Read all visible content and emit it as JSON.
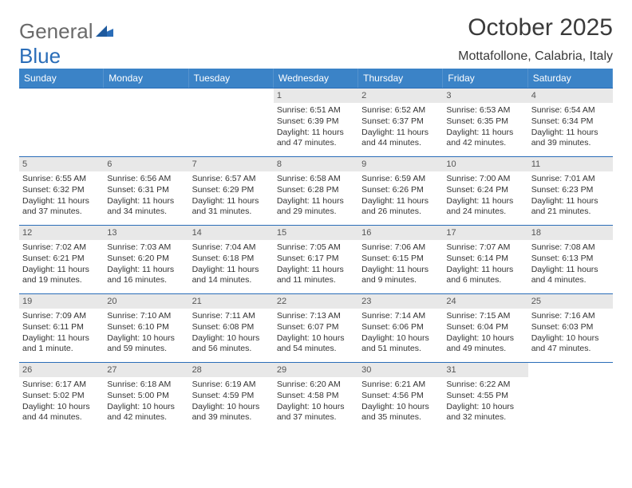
{
  "logo": {
    "text_a": "General",
    "text_b": "Blue"
  },
  "title": "October 2025",
  "location": "Mottafollone, Calabria, Italy",
  "day_headers": [
    "Sunday",
    "Monday",
    "Tuesday",
    "Wednesday",
    "Thursday",
    "Friday",
    "Saturday"
  ],
  "colors": {
    "header_bg": "#3b83c7",
    "header_text": "#ffffff",
    "rule": "#2a6db8",
    "daynum_bg": "#e8e8e8",
    "text": "#333333",
    "logo_gray": "#6a6a6a"
  },
  "weeks": [
    [
      {
        "n": "",
        "sr": "",
        "ss": "",
        "dl": ""
      },
      {
        "n": "",
        "sr": "",
        "ss": "",
        "dl": ""
      },
      {
        "n": "",
        "sr": "",
        "ss": "",
        "dl": ""
      },
      {
        "n": "1",
        "sr": "Sunrise: 6:51 AM",
        "ss": "Sunset: 6:39 PM",
        "dl": "Daylight: 11 hours and 47 minutes."
      },
      {
        "n": "2",
        "sr": "Sunrise: 6:52 AM",
        "ss": "Sunset: 6:37 PM",
        "dl": "Daylight: 11 hours and 44 minutes."
      },
      {
        "n": "3",
        "sr": "Sunrise: 6:53 AM",
        "ss": "Sunset: 6:35 PM",
        "dl": "Daylight: 11 hours and 42 minutes."
      },
      {
        "n": "4",
        "sr": "Sunrise: 6:54 AM",
        "ss": "Sunset: 6:34 PM",
        "dl": "Daylight: 11 hours and 39 minutes."
      }
    ],
    [
      {
        "n": "5",
        "sr": "Sunrise: 6:55 AM",
        "ss": "Sunset: 6:32 PM",
        "dl": "Daylight: 11 hours and 37 minutes."
      },
      {
        "n": "6",
        "sr": "Sunrise: 6:56 AM",
        "ss": "Sunset: 6:31 PM",
        "dl": "Daylight: 11 hours and 34 minutes."
      },
      {
        "n": "7",
        "sr": "Sunrise: 6:57 AM",
        "ss": "Sunset: 6:29 PM",
        "dl": "Daylight: 11 hours and 31 minutes."
      },
      {
        "n": "8",
        "sr": "Sunrise: 6:58 AM",
        "ss": "Sunset: 6:28 PM",
        "dl": "Daylight: 11 hours and 29 minutes."
      },
      {
        "n": "9",
        "sr": "Sunrise: 6:59 AM",
        "ss": "Sunset: 6:26 PM",
        "dl": "Daylight: 11 hours and 26 minutes."
      },
      {
        "n": "10",
        "sr": "Sunrise: 7:00 AM",
        "ss": "Sunset: 6:24 PM",
        "dl": "Daylight: 11 hours and 24 minutes."
      },
      {
        "n": "11",
        "sr": "Sunrise: 7:01 AM",
        "ss": "Sunset: 6:23 PM",
        "dl": "Daylight: 11 hours and 21 minutes."
      }
    ],
    [
      {
        "n": "12",
        "sr": "Sunrise: 7:02 AM",
        "ss": "Sunset: 6:21 PM",
        "dl": "Daylight: 11 hours and 19 minutes."
      },
      {
        "n": "13",
        "sr": "Sunrise: 7:03 AM",
        "ss": "Sunset: 6:20 PM",
        "dl": "Daylight: 11 hours and 16 minutes."
      },
      {
        "n": "14",
        "sr": "Sunrise: 7:04 AM",
        "ss": "Sunset: 6:18 PM",
        "dl": "Daylight: 11 hours and 14 minutes."
      },
      {
        "n": "15",
        "sr": "Sunrise: 7:05 AM",
        "ss": "Sunset: 6:17 PM",
        "dl": "Daylight: 11 hours and 11 minutes."
      },
      {
        "n": "16",
        "sr": "Sunrise: 7:06 AM",
        "ss": "Sunset: 6:15 PM",
        "dl": "Daylight: 11 hours and 9 minutes."
      },
      {
        "n": "17",
        "sr": "Sunrise: 7:07 AM",
        "ss": "Sunset: 6:14 PM",
        "dl": "Daylight: 11 hours and 6 minutes."
      },
      {
        "n": "18",
        "sr": "Sunrise: 7:08 AM",
        "ss": "Sunset: 6:13 PM",
        "dl": "Daylight: 11 hours and 4 minutes."
      }
    ],
    [
      {
        "n": "19",
        "sr": "Sunrise: 7:09 AM",
        "ss": "Sunset: 6:11 PM",
        "dl": "Daylight: 11 hours and 1 minute."
      },
      {
        "n": "20",
        "sr": "Sunrise: 7:10 AM",
        "ss": "Sunset: 6:10 PM",
        "dl": "Daylight: 10 hours and 59 minutes."
      },
      {
        "n": "21",
        "sr": "Sunrise: 7:11 AM",
        "ss": "Sunset: 6:08 PM",
        "dl": "Daylight: 10 hours and 56 minutes."
      },
      {
        "n": "22",
        "sr": "Sunrise: 7:13 AM",
        "ss": "Sunset: 6:07 PM",
        "dl": "Daylight: 10 hours and 54 minutes."
      },
      {
        "n": "23",
        "sr": "Sunrise: 7:14 AM",
        "ss": "Sunset: 6:06 PM",
        "dl": "Daylight: 10 hours and 51 minutes."
      },
      {
        "n": "24",
        "sr": "Sunrise: 7:15 AM",
        "ss": "Sunset: 6:04 PM",
        "dl": "Daylight: 10 hours and 49 minutes."
      },
      {
        "n": "25",
        "sr": "Sunrise: 7:16 AM",
        "ss": "Sunset: 6:03 PM",
        "dl": "Daylight: 10 hours and 47 minutes."
      }
    ],
    [
      {
        "n": "26",
        "sr": "Sunrise: 6:17 AM",
        "ss": "Sunset: 5:02 PM",
        "dl": "Daylight: 10 hours and 44 minutes."
      },
      {
        "n": "27",
        "sr": "Sunrise: 6:18 AM",
        "ss": "Sunset: 5:00 PM",
        "dl": "Daylight: 10 hours and 42 minutes."
      },
      {
        "n": "28",
        "sr": "Sunrise: 6:19 AM",
        "ss": "Sunset: 4:59 PM",
        "dl": "Daylight: 10 hours and 39 minutes."
      },
      {
        "n": "29",
        "sr": "Sunrise: 6:20 AM",
        "ss": "Sunset: 4:58 PM",
        "dl": "Daylight: 10 hours and 37 minutes."
      },
      {
        "n": "30",
        "sr": "Sunrise: 6:21 AM",
        "ss": "Sunset: 4:56 PM",
        "dl": "Daylight: 10 hours and 35 minutes."
      },
      {
        "n": "31",
        "sr": "Sunrise: 6:22 AM",
        "ss": "Sunset: 4:55 PM",
        "dl": "Daylight: 10 hours and 32 minutes."
      },
      {
        "n": "",
        "sr": "",
        "ss": "",
        "dl": ""
      }
    ]
  ]
}
